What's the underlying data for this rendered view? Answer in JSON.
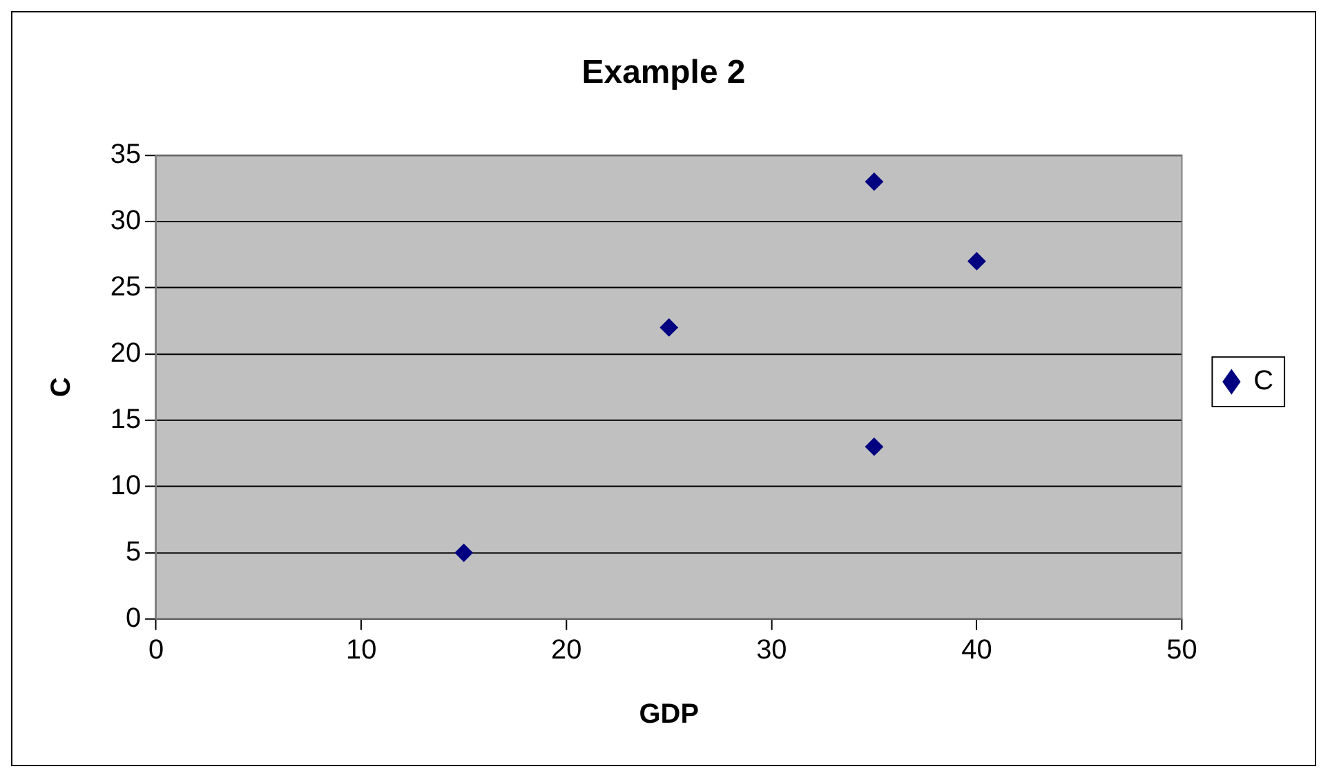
{
  "chart_data": {
    "type": "scatter",
    "title": "Example 2",
    "xlabel": "GDP",
    "ylabel": "C",
    "series": [
      {
        "name": "C",
        "color": "#000080",
        "x": [
          15,
          25,
          35,
          35,
          40
        ],
        "values": [
          5,
          22,
          33,
          13,
          27
        ]
      }
    ],
    "xlim": [
      0,
      50
    ],
    "xticks": [
      0,
      10,
      20,
      30,
      40,
      50
    ],
    "ylim": [
      0,
      35
    ],
    "yticks": [
      0,
      5,
      10,
      15,
      20,
      25,
      30,
      35
    ],
    "grid": "y",
    "legend": "right",
    "marker": "diamond"
  }
}
